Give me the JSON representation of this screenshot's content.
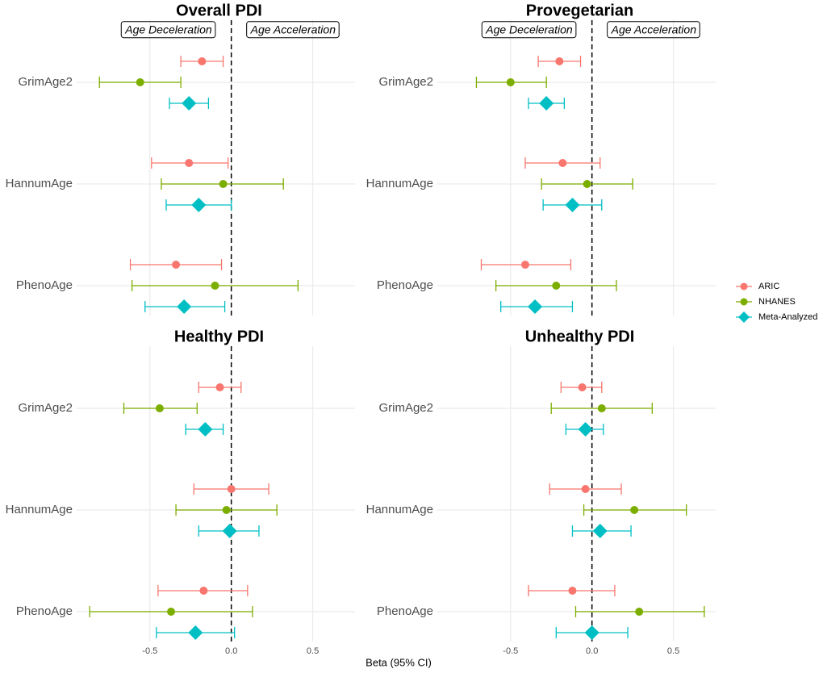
{
  "xlabel": "Beta (95% CI)",
  "chart_data": [
    {
      "type": "forest",
      "title": "Overall PDI",
      "categories": [
        "GrimAge2",
        "HannumAge",
        "PhenoAge"
      ],
      "annotations": [
        "Age Deceleration",
        "Age Acceleration"
      ],
      "xlim": [
        -0.95,
        0.76
      ],
      "xticks": [
        -0.5,
        0,
        0.5
      ],
      "grid": true,
      "series": [
        {
          "name": "ARIC",
          "color": "#F8766D",
          "marker": "circle",
          "values": [
            -0.18,
            -0.26,
            -0.34
          ],
          "lower": [
            -0.31,
            -0.49,
            -0.62
          ],
          "upper": [
            -0.05,
            -0.02,
            -0.06
          ]
        },
        {
          "name": "NHANES",
          "color": "#7CAE00",
          "marker": "circle",
          "values": [
            -0.56,
            -0.05,
            -0.1
          ],
          "lower": [
            -0.81,
            -0.43,
            -0.61
          ],
          "upper": [
            -0.31,
            0.32,
            0.41
          ]
        },
        {
          "name": "Meta-Analyzed",
          "color": "#00BFC4",
          "marker": "diamond",
          "values": [
            -0.26,
            -0.2,
            -0.29
          ],
          "lower": [
            -0.38,
            -0.4,
            -0.53
          ],
          "upper": [
            -0.14,
            0.0,
            -0.04
          ]
        }
      ]
    },
    {
      "type": "forest",
      "title": "Provegetarian",
      "categories": [
        "GrimAge2",
        "HannumAge",
        "PhenoAge"
      ],
      "annotations": [
        "Age Deceleration",
        "Age Acceleration"
      ],
      "xlim": [
        -0.95,
        0.76
      ],
      "xticks": [
        -0.5,
        0,
        0.5
      ],
      "grid": true,
      "series": [
        {
          "name": "ARIC",
          "color": "#F8766D",
          "marker": "circle",
          "values": [
            -0.2,
            -0.18,
            -0.41
          ],
          "lower": [
            -0.33,
            -0.41,
            -0.68
          ],
          "upper": [
            -0.07,
            0.05,
            -0.13
          ]
        },
        {
          "name": "NHANES",
          "color": "#7CAE00",
          "marker": "circle",
          "values": [
            -0.5,
            -0.03,
            -0.22
          ],
          "lower": [
            -0.71,
            -0.31,
            -0.59
          ],
          "upper": [
            -0.28,
            0.25,
            0.15
          ]
        },
        {
          "name": "Meta-Analyzed",
          "color": "#00BFC4",
          "marker": "diamond",
          "values": [
            -0.28,
            -0.12,
            -0.35
          ],
          "lower": [
            -0.39,
            -0.3,
            -0.56
          ],
          "upper": [
            -0.17,
            0.06,
            -0.12
          ]
        }
      ]
    },
    {
      "type": "forest",
      "title": "Healthy PDI",
      "categories": [
        "GrimAge2",
        "HannumAge",
        "PhenoAge"
      ],
      "xlim": [
        -0.95,
        0.76
      ],
      "xticks": [
        -0.5,
        {
          "value": 0,
          "label": "0.0"
        },
        0.5
      ],
      "grid": true,
      "series": [
        {
          "name": "ARIC",
          "color": "#F8766D",
          "marker": "circle",
          "values": [
            -0.07,
            0.0,
            -0.17
          ],
          "lower": [
            -0.2,
            -0.23,
            -0.45
          ],
          "upper": [
            0.06,
            0.23,
            0.1
          ]
        },
        {
          "name": "NHANES",
          "color": "#7CAE00",
          "marker": "circle",
          "values": [
            -0.44,
            -0.03,
            -0.37
          ],
          "lower": [
            -0.66,
            -0.34,
            -0.87
          ],
          "upper": [
            -0.21,
            0.28,
            0.13
          ]
        },
        {
          "name": "Meta-Analyzed",
          "color": "#00BFC4",
          "marker": "diamond",
          "values": [
            -0.16,
            -0.01,
            -0.22
          ],
          "lower": [
            -0.28,
            -0.2,
            -0.46
          ],
          "upper": [
            -0.05,
            0.17,
            0.02
          ]
        }
      ]
    },
    {
      "type": "forest",
      "title": "Unhealthy PDI",
      "categories": [
        "GrimAge2",
        "HannumAge",
        "PhenoAge"
      ],
      "xlim": [
        -0.95,
        0.76
      ],
      "xticks": [
        -0.5,
        {
          "value": 0,
          "label": "0.0"
        },
        0.5
      ],
      "grid": true,
      "series": [
        {
          "name": "ARIC",
          "color": "#F8766D",
          "marker": "circle",
          "values": [
            -0.06,
            -0.04,
            -0.12
          ],
          "lower": [
            -0.19,
            -0.26,
            -0.39
          ],
          "upper": [
            0.06,
            0.18,
            0.14
          ]
        },
        {
          "name": "NHANES",
          "color": "#7CAE00",
          "marker": "circle",
          "values": [
            0.06,
            0.26,
            0.29
          ],
          "lower": [
            -0.25,
            -0.05,
            -0.1
          ],
          "upper": [
            0.37,
            0.58,
            0.69
          ]
        },
        {
          "name": "Meta-Analyzed",
          "color": "#00BFC4",
          "marker": "diamond",
          "values": [
            -0.04,
            0.05,
            0.0
          ],
          "lower": [
            -0.16,
            -0.12,
            -0.22
          ],
          "upper": [
            0.07,
            0.24,
            0.22
          ]
        }
      ]
    }
  ]
}
